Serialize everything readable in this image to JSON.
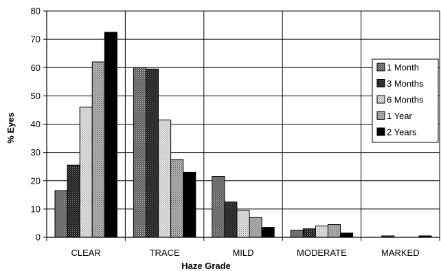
{
  "chart_data": {
    "type": "bar",
    "title": "",
    "xlabel": "Haze Grade",
    "ylabel": "% Eyes",
    "categories": [
      "CLEAR",
      "TRACE",
      "MILD",
      "MODERATE",
      "MARKED"
    ],
    "ylim": [
      0,
      80
    ],
    "yticks": [
      "0",
      "10",
      "20",
      "30",
      "40",
      "50",
      "60",
      "70",
      "80"
    ],
    "grid": true,
    "legend_position": "right",
    "series": [
      {
        "name": "1 Month",
        "values": [
          16.5,
          60,
          21.5,
          2.5,
          0
        ],
        "color": "#707070",
        "pattern": "dots-dark"
      },
      {
        "name": "3 Months",
        "values": [
          25.5,
          59.5,
          12.5,
          3,
          0.5
        ],
        "color": "#2a2a2a",
        "pattern": "dots-darker"
      },
      {
        "name": "6 Months",
        "values": [
          46,
          41.5,
          9.5,
          4,
          0
        ],
        "color": "#d4d4d4",
        "pattern": "dots-light"
      },
      {
        "name": "1 Year",
        "values": [
          62,
          27.5,
          7,
          4.5,
          0
        ],
        "color": "#a6a6a6",
        "pattern": "dots-mid"
      },
      {
        "name": "2 Years",
        "values": [
          72.5,
          23,
          3.5,
          1.5,
          0.5
        ],
        "color": "#000000",
        "pattern": "solid"
      }
    ]
  }
}
